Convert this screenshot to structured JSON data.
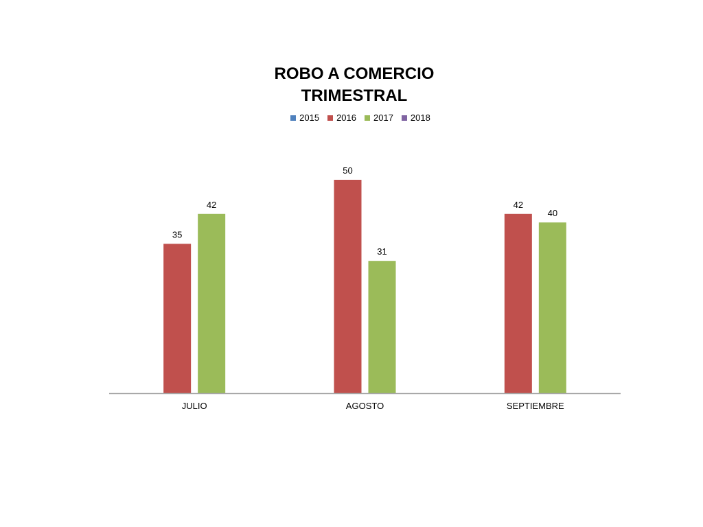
{
  "chart_data": {
    "type": "bar",
    "title_lines": [
      "ROBO A COMERCIO",
      "TRIMESTRAL"
    ],
    "categories": [
      "JULIO",
      "AGOSTO",
      "SEPTIEMBRE"
    ],
    "series": [
      {
        "name": "2015",
        "color": "#4F81BD",
        "values": [
          null,
          null,
          null
        ]
      },
      {
        "name": "2016",
        "color": "#C0504D",
        "values": [
          35,
          50,
          42
        ]
      },
      {
        "name": "2017",
        "color": "#9BBB59",
        "values": [
          42,
          31,
          40
        ]
      },
      {
        "name": "2018",
        "color": "#8064A2",
        "values": [
          null,
          null,
          null
        ]
      }
    ],
    "ylim": [
      0,
      50
    ],
    "grid": false,
    "legend_position": "top",
    "axis_color": "#A6A6A6"
  }
}
